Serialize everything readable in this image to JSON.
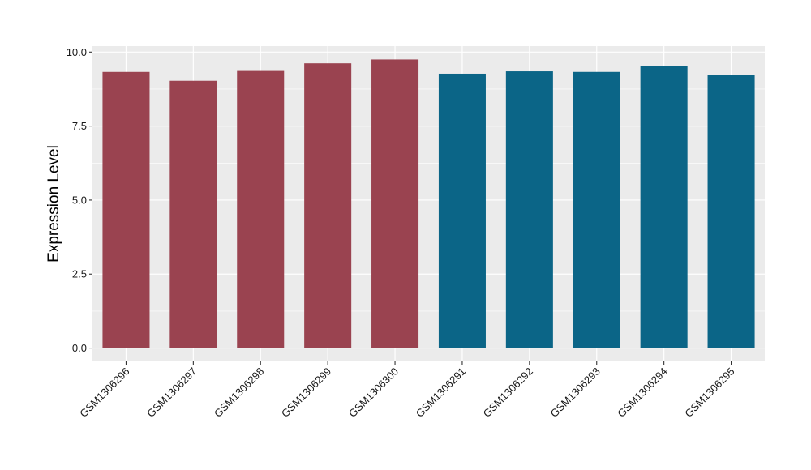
{
  "chart_data": {
    "type": "bar",
    "title": "",
    "xlabel": "",
    "ylabel": "Expression Level",
    "ylim": [
      -0.45,
      10.2
    ],
    "yticks": [
      0.0,
      2.5,
      5.0,
      7.5,
      10.0
    ],
    "ytick_labels": [
      "0.0",
      "2.5",
      "5.0",
      "7.5",
      "10.0"
    ],
    "grid": true,
    "legend": "none",
    "categories": [
      "GSM1306296",
      "GSM1306297",
      "GSM1306298",
      "GSM1306299",
      "GSM1306300",
      "GSM1306291",
      "GSM1306292",
      "GSM1306293",
      "GSM1306294",
      "GSM1306295"
    ],
    "values": [
      9.33,
      9.03,
      9.39,
      9.62,
      9.75,
      9.27,
      9.35,
      9.33,
      9.53,
      9.22
    ],
    "bar_colors": [
      "#9a4350",
      "#9a4350",
      "#9a4350",
      "#9a4350",
      "#9a4350",
      "#0b6587",
      "#0b6587",
      "#0b6587",
      "#0b6587",
      "#0b6587"
    ],
    "panel_background": "#ebebeb",
    "grid_color": "#ffffff"
  }
}
